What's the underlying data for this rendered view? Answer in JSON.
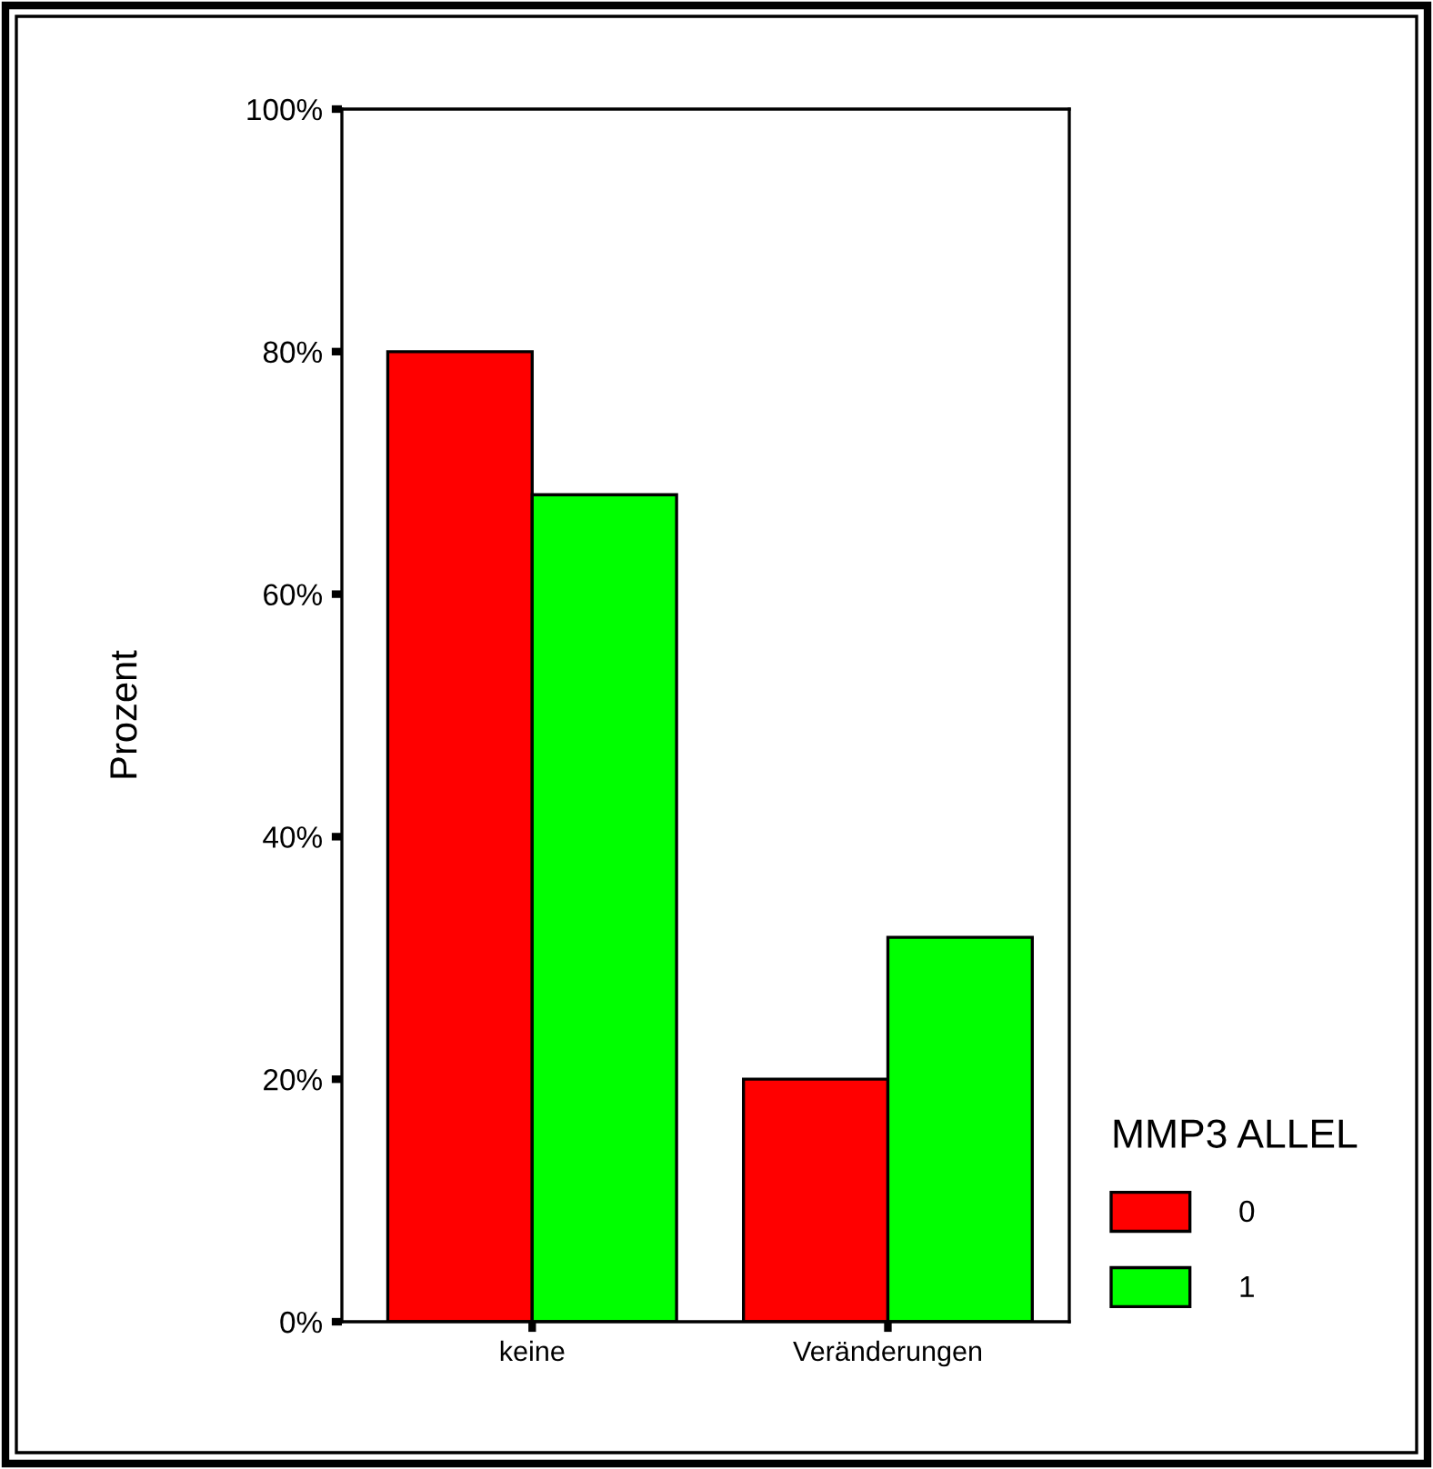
{
  "chart_data": {
    "type": "bar",
    "ylabel": "Prozent",
    "legend_title": "MMP3 ALLEL",
    "legend": "right",
    "categories": [
      "keine",
      "Veränderungen"
    ],
    "series": [
      {
        "name": "0",
        "color": "#ff0000",
        "values": [
          80,
          20
        ]
      },
      {
        "name": "1",
        "color": "#00ff00",
        "values": [
          68.2,
          31.7
        ]
      }
    ],
    "ylim": [
      0,
      100
    ],
    "yticks": [
      {
        "value": 0,
        "label": "0%"
      },
      {
        "value": 20,
        "label": "20%"
      },
      {
        "value": 40,
        "label": "40%"
      },
      {
        "value": 60,
        "label": "60%"
      },
      {
        "value": 80,
        "label": "80%"
      },
      {
        "value": 100,
        "label": "100%"
      }
    ],
    "grid": false
  }
}
